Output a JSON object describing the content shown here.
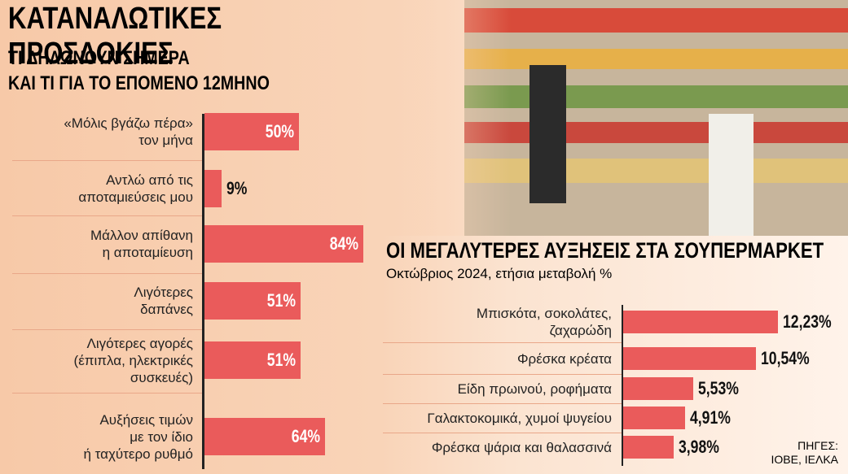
{
  "title": "ΚΑΤΑΝΑΛΩΤΙΚΕΣ ΠΡΟΣΔΟΚΙΕΣ",
  "source": "ΠΗΓΕΣ:\nΙΟΒΕ, ΙΕΛΚΑ",
  "chart_data": [
    {
      "type": "bar",
      "subtitle": "ΤΙ ΔΗΛΩΝΟΥΝ ΣΗΜΕΡΑ\nΚΑΙ ΤΙ ΓΙΑ ΤΟ ΕΠΟΜΕΝΟ 12ΜΗΝΟ",
      "color": "#ea5b5b",
      "categories": [
        "«Μόλις βγάζω πέρα»\nτον μήνα",
        "Αντλώ από τις\nαποταμιεύσεις μου",
        "Μάλλον απίθανη\nη αποταμίευση",
        "Λιγότερες\nδαπάνες",
        "Λιγότερες αγορές\n(έπιπλα, ηλεκτρικές\nσυσκευές)",
        "Αυξήσεις τιμών\nμε τον ίδιο\nή ταχύτερο ρυθμό"
      ],
      "values": [
        50,
        9,
        84,
        51,
        51,
        64
      ],
      "value_labels": [
        "50%",
        "9%",
        "84%",
        "51%",
        "51%",
        "64%"
      ]
    },
    {
      "type": "bar",
      "title": "ΟΙ ΜΕΓΑΛΥΤΕΡΕΣ ΑΥΞΗΣΕΙΣ ΣΤΑ ΣΟΥΠΕΡΜΑΡΚΕΤ",
      "subtitle": "Οκτώβριος 2024, ετήσια μεταβολή %",
      "color": "#ea5b5b",
      "categories": [
        "Μπισκότα, σοκολάτες,\nζαχαρώδη",
        "Φρέσκα κρέατα",
        "Είδη πρωινού, ροφήματα",
        "Γαλακτοκομικά, χυμοί ψυγείου",
        "Φρέσκα ψάρια και θαλασσινά"
      ],
      "values": [
        12.23,
        10.54,
        5.53,
        4.91,
        3.98
      ],
      "value_labels": [
        "12,23%",
        "10,54%",
        "5,53%",
        "4,91%",
        "3,98%"
      ]
    }
  ]
}
